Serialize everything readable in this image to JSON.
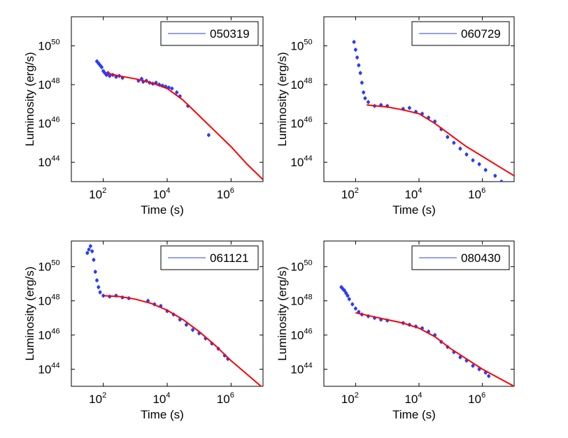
{
  "chart_data": [
    {
      "type": "scatter",
      "legend": "050319",
      "xlabel": "Time (s)",
      "ylabel": "Luminosity (erg/s)",
      "xscale": "log",
      "yscale": "log",
      "xlim_exp": [
        1,
        7
      ],
      "ylim_exp": [
        43,
        51.5
      ],
      "xticks": [
        {
          "base": "10",
          "exp": "2"
        },
        {
          "base": "10",
          "exp": "4"
        },
        {
          "base": "10",
          "exp": "6"
        }
      ],
      "yticks": [
        {
          "base": "10",
          "exp": "44"
        },
        {
          "base": "10",
          "exp": "46"
        },
        {
          "base": "10",
          "exp": "48"
        },
        {
          "base": "10",
          "exp": "50"
        }
      ],
      "xtick_exp_values": [
        2,
        4,
        6
      ],
      "ytick_exp_values": [
        44,
        46,
        48,
        50
      ],
      "data_series": {
        "name": "050319",
        "color": "#2a3cff",
        "log_points": [
          [
            1.8,
            49.2
          ],
          [
            1.85,
            49.1
          ],
          [
            1.9,
            49.0
          ],
          [
            1.95,
            48.9
          ],
          [
            2.0,
            48.7
          ],
          [
            2.05,
            48.6
          ],
          [
            2.1,
            48.5
          ],
          [
            2.15,
            48.6
          ],
          [
            2.2,
            48.45
          ],
          [
            2.3,
            48.5
          ],
          [
            2.4,
            48.4
          ],
          [
            2.5,
            48.45
          ],
          [
            2.6,
            48.35
          ],
          [
            3.1,
            48.2
          ],
          [
            3.2,
            48.3
          ],
          [
            3.25,
            48.15
          ],
          [
            3.35,
            48.2
          ],
          [
            3.45,
            48.1
          ],
          [
            3.55,
            48.05
          ],
          [
            3.65,
            48.1
          ],
          [
            3.75,
            48.0
          ],
          [
            3.85,
            47.95
          ],
          [
            3.95,
            47.9
          ],
          [
            4.05,
            47.85
          ],
          [
            4.15,
            47.8
          ],
          [
            4.3,
            47.6
          ],
          [
            4.4,
            47.4
          ],
          [
            4.65,
            46.9
          ],
          [
            5.3,
            45.4
          ]
        ]
      },
      "model_series": {
        "name": "model",
        "color": "#ff0000",
        "log_points": [
          [
            2.1,
            48.6
          ],
          [
            2.5,
            48.45
          ],
          [
            3.0,
            48.3
          ],
          [
            3.5,
            48.1
          ],
          [
            4.0,
            47.8
          ],
          [
            4.5,
            47.2
          ],
          [
            5.0,
            46.4
          ],
          [
            5.5,
            45.6
          ],
          [
            6.0,
            44.8
          ],
          [
            6.5,
            43.9
          ],
          [
            7.0,
            43.1
          ]
        ]
      }
    },
    {
      "type": "scatter",
      "legend": "060729",
      "xlabel": "Time (s)",
      "ylabel": "Luminosity (erg/s)",
      "xscale": "log",
      "yscale": "log",
      "xlim_exp": [
        1,
        7
      ],
      "ylim_exp": [
        43,
        51.5
      ],
      "xticks": [
        {
          "base": "10",
          "exp": "2"
        },
        {
          "base": "10",
          "exp": "4"
        },
        {
          "base": "10",
          "exp": "6"
        }
      ],
      "yticks": [
        {
          "base": "10",
          "exp": "44"
        },
        {
          "base": "10",
          "exp": "46"
        },
        {
          "base": "10",
          "exp": "48"
        },
        {
          "base": "10",
          "exp": "50"
        }
      ],
      "xtick_exp_values": [
        2,
        4,
        6
      ],
      "ytick_exp_values": [
        44,
        46,
        48,
        50
      ],
      "data_series": {
        "name": "060729",
        "color": "#2a3cff",
        "log_points": [
          [
            1.95,
            50.2
          ],
          [
            2.0,
            49.8
          ],
          [
            2.05,
            49.4
          ],
          [
            2.1,
            49.0
          ],
          [
            2.15,
            48.6
          ],
          [
            2.2,
            48.1
          ],
          [
            2.25,
            47.6
          ],
          [
            2.3,
            47.3
          ],
          [
            2.4,
            47.1
          ],
          [
            2.6,
            46.9
          ],
          [
            2.8,
            46.95
          ],
          [
            3.0,
            46.9
          ],
          [
            3.5,
            46.75
          ],
          [
            3.7,
            46.8
          ],
          [
            3.9,
            46.6
          ],
          [
            4.1,
            46.5
          ],
          [
            4.3,
            46.3
          ],
          [
            4.5,
            46.1
          ],
          [
            4.7,
            45.7
          ],
          [
            4.9,
            45.3
          ],
          [
            5.1,
            45.0
          ],
          [
            5.3,
            44.7
          ],
          [
            5.5,
            44.4
          ],
          [
            5.7,
            44.1
          ],
          [
            5.9,
            43.9
          ],
          [
            6.1,
            43.6
          ],
          [
            6.4,
            43.3
          ],
          [
            6.6,
            43.0
          ]
        ]
      },
      "model_series": {
        "name": "model",
        "color": "#ff0000",
        "log_points": [
          [
            2.35,
            46.95
          ],
          [
            3.0,
            46.85
          ],
          [
            3.5,
            46.7
          ],
          [
            4.0,
            46.5
          ],
          [
            4.5,
            46.0
          ],
          [
            5.0,
            45.4
          ],
          [
            5.5,
            44.8
          ],
          [
            6.0,
            44.3
          ],
          [
            6.5,
            43.8
          ],
          [
            7.0,
            43.3
          ]
        ]
      }
    },
    {
      "type": "scatter",
      "legend": "061121",
      "xlabel": "Time (s)",
      "ylabel": "Luminosity (erg/s)",
      "xscale": "log",
      "yscale": "log",
      "xlim_exp": [
        1,
        7
      ],
      "ylim_exp": [
        43,
        51.5
      ],
      "xticks": [
        {
          "base": "10",
          "exp": "2"
        },
        {
          "base": "10",
          "exp": "4"
        },
        {
          "base": "10",
          "exp": "6"
        }
      ],
      "yticks": [
        {
          "base": "10",
          "exp": "44"
        },
        {
          "base": "10",
          "exp": "46"
        },
        {
          "base": "10",
          "exp": "48"
        },
        {
          "base": "10",
          "exp": "50"
        }
      ],
      "xtick_exp_values": [
        2,
        4,
        6
      ],
      "ytick_exp_values": [
        44,
        46,
        48,
        50
      ],
      "data_series": {
        "name": "061121",
        "color": "#2a3cff",
        "log_points": [
          [
            1.5,
            50.8
          ],
          [
            1.55,
            51.0
          ],
          [
            1.6,
            51.2
          ],
          [
            1.65,
            50.9
          ],
          [
            1.7,
            50.4
          ],
          [
            1.75,
            49.7
          ],
          [
            1.8,
            49.2
          ],
          [
            1.85,
            48.8
          ],
          [
            1.9,
            48.5
          ],
          [
            2.0,
            48.3
          ],
          [
            2.2,
            48.25
          ],
          [
            2.4,
            48.3
          ],
          [
            2.6,
            48.2
          ],
          [
            2.8,
            48.15
          ],
          [
            3.4,
            48.0
          ],
          [
            3.6,
            47.8
          ],
          [
            3.8,
            47.7
          ],
          [
            4.0,
            47.4
          ],
          [
            4.2,
            47.2
          ],
          [
            4.4,
            46.9
          ],
          [
            4.6,
            46.6
          ],
          [
            4.8,
            46.3
          ],
          [
            5.0,
            46.1
          ],
          [
            5.2,
            45.8
          ],
          [
            5.4,
            45.5
          ],
          [
            5.6,
            45.2
          ],
          [
            5.8,
            44.8
          ],
          [
            5.9,
            44.6
          ]
        ]
      },
      "model_series": {
        "name": "model",
        "color": "#ff0000",
        "log_points": [
          [
            2.0,
            48.3
          ],
          [
            2.5,
            48.25
          ],
          [
            3.0,
            48.1
          ],
          [
            3.5,
            47.85
          ],
          [
            4.0,
            47.45
          ],
          [
            4.5,
            46.9
          ],
          [
            5.0,
            46.2
          ],
          [
            5.5,
            45.4
          ],
          [
            6.0,
            44.5
          ],
          [
            6.5,
            43.7
          ],
          [
            7.0,
            42.9
          ]
        ]
      }
    },
    {
      "type": "scatter",
      "legend": "080430",
      "xlabel": "Time (s)",
      "ylabel": "Luminosity (erg/s)",
      "xscale": "log",
      "yscale": "log",
      "xlim_exp": [
        1,
        7
      ],
      "ylim_exp": [
        43,
        51.5
      ],
      "xticks": [
        {
          "base": "10",
          "exp": "2"
        },
        {
          "base": "10",
          "exp": "4"
        },
        {
          "base": "10",
          "exp": "6"
        }
      ],
      "yticks": [
        {
          "base": "10",
          "exp": "44"
        },
        {
          "base": "10",
          "exp": "46"
        },
        {
          "base": "10",
          "exp": "48"
        },
        {
          "base": "10",
          "exp": "50"
        }
      ],
      "xtick_exp_values": [
        2,
        4,
        6
      ],
      "ytick_exp_values": [
        44,
        46,
        48,
        50
      ],
      "data_series": {
        "name": "080430",
        "color": "#2a3cff",
        "log_points": [
          [
            1.55,
            48.8
          ],
          [
            1.6,
            48.7
          ],
          [
            1.65,
            48.6
          ],
          [
            1.7,
            48.45
          ],
          [
            1.75,
            48.3
          ],
          [
            1.8,
            48.1
          ],
          [
            1.9,
            47.8
          ],
          [
            2.0,
            47.55
          ],
          [
            2.1,
            47.35
          ],
          [
            2.2,
            47.2
          ],
          [
            2.4,
            47.1
          ],
          [
            2.6,
            47.0
          ],
          [
            2.8,
            46.9
          ],
          [
            3.0,
            46.85
          ],
          [
            3.5,
            46.7
          ],
          [
            3.7,
            46.6
          ],
          [
            3.9,
            46.5
          ],
          [
            4.1,
            46.4
          ],
          [
            4.3,
            46.2
          ],
          [
            4.5,
            46.0
          ],
          [
            4.7,
            45.6
          ],
          [
            4.9,
            45.3
          ],
          [
            5.1,
            45.0
          ],
          [
            5.3,
            44.7
          ],
          [
            5.5,
            44.5
          ],
          [
            5.7,
            44.2
          ],
          [
            5.9,
            44.0
          ],
          [
            6.1,
            43.8
          ],
          [
            6.2,
            43.6
          ]
        ]
      },
      "model_series": {
        "name": "model",
        "color": "#ff0000",
        "log_points": [
          [
            2.0,
            47.3
          ],
          [
            2.5,
            47.1
          ],
          [
            3.0,
            46.9
          ],
          [
            3.5,
            46.7
          ],
          [
            4.0,
            46.4
          ],
          [
            4.5,
            45.9
          ],
          [
            5.0,
            45.2
          ],
          [
            5.5,
            44.6
          ],
          [
            6.0,
            44.0
          ],
          [
            6.5,
            43.5
          ],
          [
            7.0,
            43.0
          ]
        ]
      }
    }
  ]
}
